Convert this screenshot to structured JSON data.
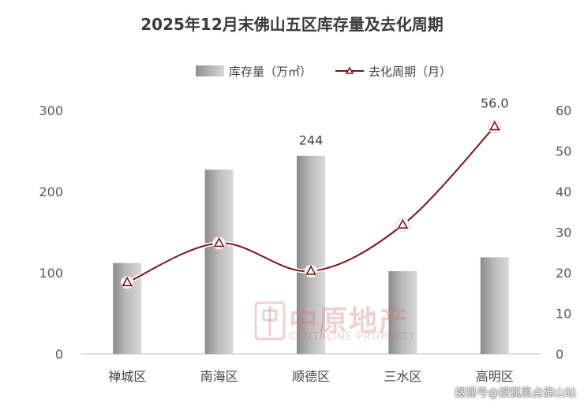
{
  "chart_data": {
    "type": "bar",
    "title": "2025年12月末佛山五区库存量及去化周期",
    "categories": [
      "禅城区",
      "南海区",
      "顺德区",
      "三水区",
      "高明区"
    ],
    "series": [
      {
        "name": "库存量（万㎡）",
        "type": "bar",
        "axis": "left",
        "values": [
          112,
          227,
          244,
          102,
          119
        ],
        "data_labels": {
          "2": "244"
        },
        "color": "#a8a8a8"
      },
      {
        "name": "去化周期（月）",
        "type": "line",
        "axis": "right",
        "values": [
          17.6,
          27.3,
          20.4,
          31.8,
          56.0
        ],
        "data_labels": {
          "4": "56.0"
        },
        "color": "#7b1216",
        "marker": "triangle"
      }
    ],
    "y_left": {
      "ylim": [
        0,
        300
      ],
      "ticks": [
        "0",
        "100",
        "200",
        "300"
      ]
    },
    "y_right": {
      "ylim": [
        0,
        60
      ],
      "ticks": [
        "0",
        "10",
        "20",
        "30",
        "40",
        "50",
        "60"
      ]
    },
    "grid": false,
    "legend": "top-center"
  },
  "watermark": {
    "cn": "中原地产",
    "en": "CENTALINE PROPERTY"
  },
  "source": "搜狐号@搜狐黑点佛山站"
}
